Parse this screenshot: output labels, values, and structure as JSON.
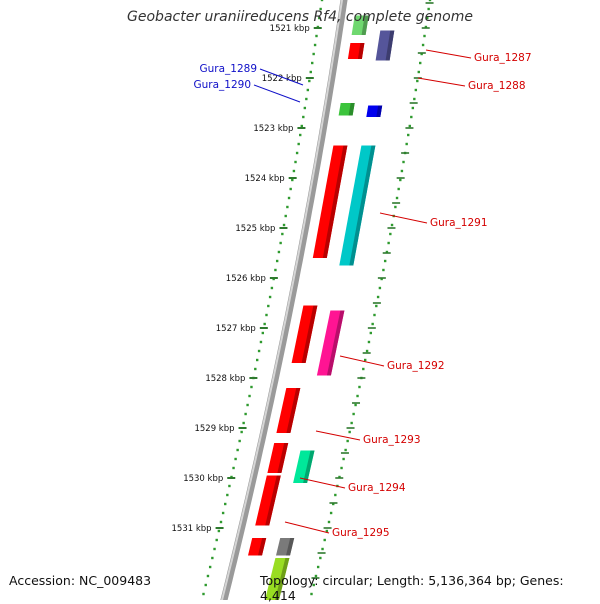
{
  "title": "Geobacter uraniireducens Rf4, complete genome",
  "footer": {
    "accession": "Accession: NC_009483",
    "summary": "Topology: circular; Length: 5,136,364 bp; Genes: 4,414"
  },
  "colors": {
    "backbone": "#8a8a8a",
    "ruler_dots": "#2e9a2e",
    "label_red": "#d40000",
    "label_blue": "#1010c8"
  },
  "ticks": [
    "1521 kbp",
    "1522 kbp",
    "1523 kbp",
    "1524 kbp",
    "1525 kbp",
    "1526 kbp",
    "1527 kbp",
    "1528 kbp",
    "1529 kbp",
    "1530 kbp",
    "1531 kbp"
  ],
  "labels": [
    "Gura_1287",
    "Gura_1288",
    "Gura_1289",
    "Gura_1290",
    "Gura_1291",
    "Gura_1292",
    "Gura_1293",
    "Gura_1294",
    "Gura_1295"
  ],
  "genes": [
    {
      "track": 0,
      "from": -0.25,
      "to": 0.14,
      "color": "#6fd86f"
    },
    {
      "track": 0,
      "from": 0.3,
      "to": 0.62,
      "color": "#ff0000"
    },
    {
      "track": 1,
      "from": 0.05,
      "to": 0.65,
      "color": "#55559a"
    },
    {
      "track": 0,
      "from": 1.5,
      "to": 1.75,
      "color": "#3cc43c"
    },
    {
      "track": 1,
      "from": 1.55,
      "to": 1.78,
      "color": "#0000ee"
    },
    {
      "track": 0,
      "from": 2.35,
      "to": 4.6,
      "color": "#ff0000"
    },
    {
      "track": 1,
      "from": 2.35,
      "to": 4.75,
      "color": "#00c8c8"
    },
    {
      "track": 0,
      "from": 5.55,
      "to": 6.7,
      "color": "#ff0000"
    },
    {
      "track": 1,
      "from": 5.65,
      "to": 6.95,
      "color": "#ff1493"
    },
    {
      "track": 0,
      "from": 7.2,
      "to": 8.1,
      "color": "#ff0000"
    },
    {
      "track": 0,
      "from": 8.3,
      "to": 8.9,
      "color": "#ff0000"
    },
    {
      "track": 1,
      "from": 8.45,
      "to": 9.1,
      "color": "#00e89a"
    },
    {
      "track": 0,
      "from": 8.95,
      "to": 9.95,
      "color": "#ff0000"
    },
    {
      "track": 0,
      "from": 10.2,
      "to": 10.55,
      "color": "#ff0000"
    },
    {
      "track": 1,
      "from": 10.2,
      "to": 10.55,
      "color": "#7a7a7a"
    },
    {
      "track": 1,
      "from": 10.6,
      "to": 11.6,
      "color": "#99dd22"
    }
  ]
}
